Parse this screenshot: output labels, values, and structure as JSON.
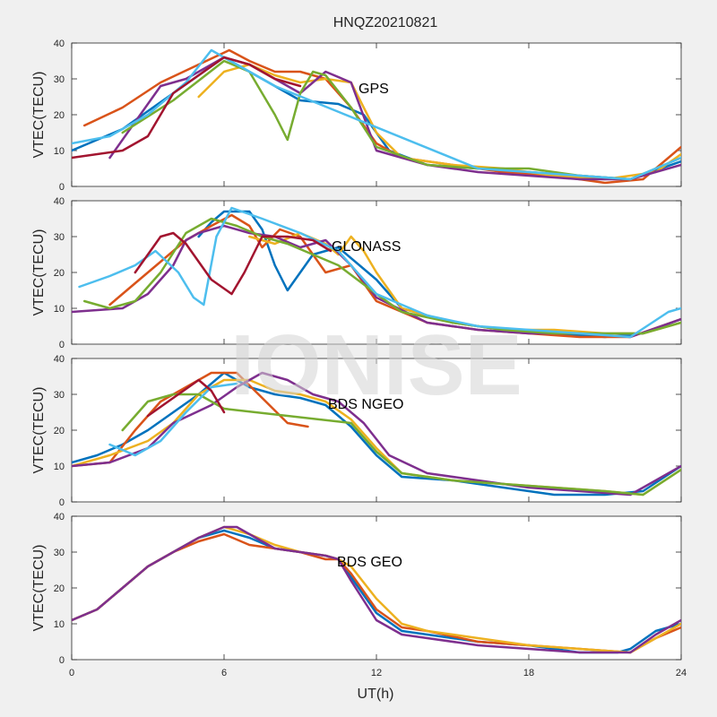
{
  "chart_data": {
    "title": "HNQZ20210821",
    "watermark": "IONISE",
    "xlabel": "UT(h)",
    "ylabel": "VTEC(TECU)",
    "type": "line",
    "xlim": [
      0,
      24
    ],
    "xticks": [
      0,
      6,
      12,
      18,
      24
    ],
    "ylim": [
      0,
      40
    ],
    "yticks": [
      0,
      10,
      20,
      30,
      40
    ],
    "colors": {
      "blue": "#0072BD",
      "orange": "#D95319",
      "yellow": "#EDB120",
      "purple": "#7E2F8E",
      "green": "#77AC30",
      "cyan": "#4DBEEE",
      "darkred": "#A2142F"
    },
    "panels": [
      {
        "label": "GPS",
        "series": [
          {
            "color": "#0072BD",
            "x": [
              0,
              2,
              4,
              6,
              7.5,
              9,
              10.5,
              11.5,
              12.5,
              14,
              16,
              18,
              20,
              22,
              24
            ],
            "y": [
              10,
              16,
              26,
              36,
              30,
              24,
              23,
              20,
              10,
              6,
              5,
              4,
              3,
              2,
              7
            ]
          },
          {
            "color": "#D95319",
            "x": [
              0.5,
              2,
              3.5,
              5,
              6.2,
              7,
              8,
              9,
              10,
              11,
              12,
              13,
              15,
              17,
              19,
              21,
              22.5,
              24
            ],
            "y": [
              17,
              22,
              29,
              34,
              38,
              35,
              32,
              32,
              30,
              22,
              12,
              8,
              6,
              4,
              3,
              1,
              2,
              11
            ]
          },
          {
            "color": "#EDB120",
            "x": [
              5,
              6,
              7,
              8,
              9,
              10,
              11,
              12,
              13,
              15,
              17,
              19,
              21,
              23,
              24
            ],
            "y": [
              25,
              32,
              34,
              31,
              29,
              30,
              29,
              15,
              8,
              6,
              5,
              3,
              2,
              4,
              9
            ]
          },
          {
            "color": "#7E2F8E",
            "x": [
              1.5,
              2.5,
              3.5,
              4.5,
              6,
              7,
              8,
              9,
              10,
              11,
              12,
              14,
              16,
              18,
              20,
              22,
              24
            ],
            "y": [
              8,
              18,
              28,
              30,
              36,
              34,
              30,
              26,
              32,
              29,
              10,
              6,
              4,
              3,
              2,
              2,
              6
            ]
          },
          {
            "color": "#77AC30",
            "x": [
              2,
              4,
              6,
              7,
              8,
              8.5,
              9,
              9.5,
              10,
              11,
              12,
              14,
              16,
              18,
              20,
              22,
              24
            ],
            "y": [
              15,
              24,
              35,
              32,
              20,
              13,
              26,
              32,
              31,
              22,
              11,
              6,
              5,
              5,
              3,
              2,
              8
            ]
          },
          {
            "color": "#4DBEEE",
            "x": [
              0,
              1.5,
              3,
              4.5,
              5.5,
              6.5,
              7.5,
              8,
              16,
              18,
              20,
              22,
              24
            ],
            "y": [
              12,
              14,
              20,
              29,
              38,
              34,
              30,
              28,
              5,
              4,
              3,
              2,
              8
            ]
          },
          {
            "color": "#A2142F",
            "x": [
              0,
              2,
              3,
              4,
              4.8,
              6,
              7,
              8,
              9
            ],
            "y": [
              8,
              10,
              14,
              26,
              30,
              36,
              34,
              30,
              28
            ]
          }
        ]
      },
      {
        "label": "GLONASS",
        "series": [
          {
            "color": "#0072BD",
            "x": [
              5,
              5.5,
              6,
              7,
              7.5,
              8,
              8.5,
              9.5,
              10.5,
              12,
              13,
              15,
              17,
              19,
              21,
              22.5,
              24
            ],
            "y": [
              30,
              34,
              37,
              37,
              32,
              22,
              15,
              25,
              27,
              18,
              10,
              6,
              4,
              3,
              2,
              3,
              7
            ]
          },
          {
            "color": "#D95319",
            "x": [
              1.5,
              2.5,
              3.5,
              4.5,
              5.5,
              6.3,
              7,
              7.5,
              8.2,
              9,
              10,
              11,
              12,
              14,
              16,
              18,
              20,
              22,
              24
            ],
            "y": [
              11,
              17,
              23,
              29,
              33,
              36,
              33,
              27,
              32,
              30,
              20,
              22,
              12,
              6,
              4,
              3,
              2,
              2,
              7
            ]
          },
          {
            "color": "#EDB120",
            "x": [
              7,
              8,
              9,
              10,
              10.5,
              11,
              11.5,
              12,
              13,
              15,
              17,
              19,
              21,
              22.5,
              24
            ],
            "y": [
              30,
              28,
              31,
              28,
              25,
              30,
              26,
              20,
              10,
              6,
              4,
              4,
              3,
              3,
              6
            ]
          },
          {
            "color": "#7E2F8E",
            "x": [
              0,
              2,
              3,
              4,
              4.5,
              5,
              6,
              7,
              8,
              9,
              10,
              11,
              12,
              14,
              16,
              18,
              20,
              22,
              24
            ],
            "y": [
              9,
              10,
              14,
              22,
              29,
              31,
              33,
              31,
              30,
              27,
              29,
              22,
              13,
              6,
              4,
              3,
              3,
              2,
              7
            ]
          },
          {
            "color": "#77AC30",
            "x": [
              0.5,
              1.5,
              2.5,
              3.5,
              4.5,
              5.5,
              6.5,
              7.5,
              8.5,
              10.5,
              12,
              13,
              15,
              17,
              19,
              21,
              22.5,
              24
            ],
            "y": [
              12,
              10,
              12,
              20,
              31,
              35,
              33,
              30,
              28,
              22,
              14,
              9,
              6,
              4,
              3,
              3,
              3,
              6
            ]
          },
          {
            "color": "#4DBEEE",
            "x": [
              0.3,
              1.5,
              2.5,
              3.3,
              4.2,
              4.8,
              5.2,
              5.7,
              6.3,
              7.5,
              9,
              10.5,
              12,
              14,
              16,
              18,
              20,
              22,
              23.5,
              24
            ],
            "y": [
              16,
              19,
              22,
              26,
              20,
              13,
              11,
              30,
              38,
              35,
              31,
              26,
              14,
              8,
              5,
              4,
              3,
              2,
              9,
              10
            ]
          },
          {
            "color": "#A2142F",
            "x": [
              2.5,
              3.5,
              4,
              4.5,
              5.5,
              6.3,
              6.8,
              7.5,
              8.5,
              9.5,
              10.2
            ],
            "y": [
              20,
              30,
              31,
              28,
              18,
              14,
              20,
              30,
              30,
              29,
              26
            ]
          }
        ]
      },
      {
        "label": "BDS NGEO",
        "series": [
          {
            "color": "#0072BD",
            "x": [
              0,
              1,
              2,
              3,
              4,
              5,
              6,
              7,
              8,
              9,
              10,
              11,
              12,
              13,
              15,
              17,
              19,
              21,
              22.5,
              24
            ],
            "y": [
              11,
              13,
              16,
              20,
              25,
              30,
              36,
              32,
              30,
              29,
              27,
              21,
              13,
              7,
              6,
              4,
              2,
              2,
              3,
              10
            ]
          },
          {
            "color": "#D95319",
            "x": [
              0,
              1.5,
              2.5,
              3.5,
              4.5,
              5.5,
              6.5,
              7.5,
              8.5,
              9.3
            ],
            "y": [
              10,
              11,
              20,
              28,
              32,
              36,
              36,
              29,
              22,
              21
            ]
          },
          {
            "color": "#EDB120",
            "x": [
              0,
              1.5,
              3,
              4,
              5,
              6,
              7,
              8,
              9,
              10,
              11,
              12,
              13,
              15,
              17,
              19,
              21,
              22.5,
              24
            ],
            "y": [
              10,
              13,
              17,
              22,
              30,
              34,
              34,
              31,
              30,
              28,
              23,
              15,
              8,
              6,
              5,
              4,
              3,
              2,
              9
            ]
          },
          {
            "color": "#7E2F8E",
            "x": [
              0,
              1.5,
              3,
              4,
              5.5,
              6.5,
              7.5,
              8.5,
              9.5,
              10.5,
              11.5,
              12.5,
              14,
              16,
              18,
              20,
              22,
              24
            ],
            "y": [
              10,
              11,
              15,
              22,
              27,
              32,
              36,
              34,
              30,
              28,
              22,
              13,
              8,
              6,
              4,
              3,
              2,
              10
            ]
          },
          {
            "color": "#77AC30",
            "x": [
              2,
              3,
              4,
              5,
              6,
              11,
              12,
              13,
              15,
              17,
              19,
              21,
              22.5,
              24
            ],
            "y": [
              20,
              28,
              30,
              30,
              26,
              22,
              14,
              8,
              6,
              5,
              4,
              3,
              2,
              9
            ]
          },
          {
            "color": "#4DBEEE",
            "x": [
              1.5,
              2.5,
              3.5,
              4.5,
              5.5,
              6.5
            ],
            "y": [
              16,
              13,
              17,
              25,
              32,
              33
            ]
          },
          {
            "color": "#A2142F",
            "x": [
              3,
              4,
              5,
              5.5,
              6
            ],
            "y": [
              24,
              29,
              34,
              31,
              25
            ]
          }
        ]
      },
      {
        "label": "BDS GEO",
        "series": [
          {
            "color": "#0072BD",
            "x": [
              0,
              1,
              2,
              3,
              4,
              5,
              6,
              7,
              8,
              9,
              10,
              10.5,
              11,
              12,
              13,
              14,
              16,
              18,
              20,
              21.5,
              22,
              23,
              24
            ],
            "y": [
              11,
              14,
              20,
              26,
              30,
              34,
              36,
              34,
              31,
              30,
              29,
              28,
              23,
              13,
              8,
              7,
              5,
              4,
              2,
              2,
              3,
              8,
              10
            ]
          },
          {
            "color": "#D95319",
            "x": [
              0,
              1,
              2,
              3,
              4,
              5,
              6,
              7,
              8,
              9,
              10,
              10.5,
              11,
              12,
              13,
              14,
              16,
              18,
              20,
              22,
              23,
              24
            ],
            "y": [
              11,
              14,
              20,
              26,
              30,
              33,
              35,
              32,
              31,
              30,
              28,
              28,
              24,
              14,
              9,
              8,
              5,
              4,
              3,
              2,
              6,
              9
            ]
          },
          {
            "color": "#EDB120",
            "x": [
              0,
              1,
              2,
              3,
              4,
              5,
              6,
              7,
              8,
              9,
              10,
              10.5,
              11,
              12,
              13,
              14,
              16,
              18,
              20,
              22,
              23,
              24
            ],
            "y": [
              11,
              14,
              20,
              26,
              30,
              34,
              37,
              35,
              32,
              30,
              29,
              28,
              26,
              17,
              10,
              8,
              6,
              4,
              3,
              2,
              6,
              10
            ]
          },
          {
            "color": "#7E2F8E",
            "x": [
              0,
              1,
              2,
              3,
              4,
              5,
              6,
              6.5,
              7,
              8,
              9,
              10,
              10.5,
              11,
              12,
              13,
              14,
              16,
              18,
              20,
              22,
              23,
              24
            ],
            "y": [
              11,
              14,
              20,
              26,
              30,
              34,
              37,
              37,
              35,
              31,
              30,
              29,
              28,
              22,
              11,
              7,
              6,
              4,
              3,
              2,
              2,
              7,
              11
            ]
          }
        ]
      }
    ]
  }
}
